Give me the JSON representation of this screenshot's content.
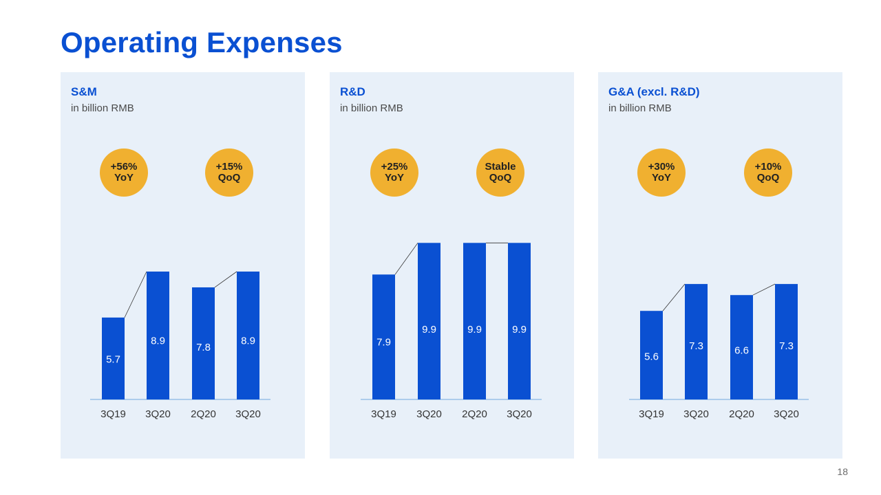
{
  "title": "Operating Expenses",
  "page_number": "18",
  "colors": {
    "bar": "#0a50d2",
    "badge": "#f0b030",
    "panel": "#e8f0f9",
    "axis": "#6fa8e0"
  },
  "panels": [
    {
      "title": "S&M",
      "subtitle": "in billion RMB",
      "badges": [
        {
          "line1": "+56%",
          "line2": "YoY"
        },
        {
          "line1": "+15%",
          "line2": "QoQ"
        }
      ]
    },
    {
      "title": "R&D",
      "subtitle": "in billion RMB",
      "badges": [
        {
          "line1": "+25%",
          "line2": "YoY"
        },
        {
          "line1": "Stable",
          "line2": "QoQ"
        }
      ]
    },
    {
      "title": "G&A (excl. R&D)",
      "subtitle": "in billion RMB",
      "badges": [
        {
          "line1": "+30%",
          "line2": "YoY"
        },
        {
          "line1": "+10%",
          "line2": "QoQ"
        }
      ]
    }
  ],
  "chart_data": [
    {
      "type": "bar",
      "title": "S&M",
      "ylabel": "in billion RMB",
      "categories": [
        "3Q19",
        "3Q20",
        "2Q20",
        "3Q20"
      ],
      "values": [
        5.7,
        8.9,
        7.8,
        8.9
      ]
    },
    {
      "type": "bar",
      "title": "R&D",
      "ylabel": "in billion RMB",
      "categories": [
        "3Q19",
        "3Q20",
        "2Q20",
        "3Q20"
      ],
      "values": [
        7.9,
        9.9,
        9.9,
        9.9
      ]
    },
    {
      "type": "bar",
      "title": "G&A (excl. R&D)",
      "ylabel": "in billion RMB",
      "categories": [
        "3Q19",
        "3Q20",
        "2Q20",
        "3Q20"
      ],
      "values": [
        5.6,
        7.3,
        6.6,
        7.3
      ]
    }
  ]
}
